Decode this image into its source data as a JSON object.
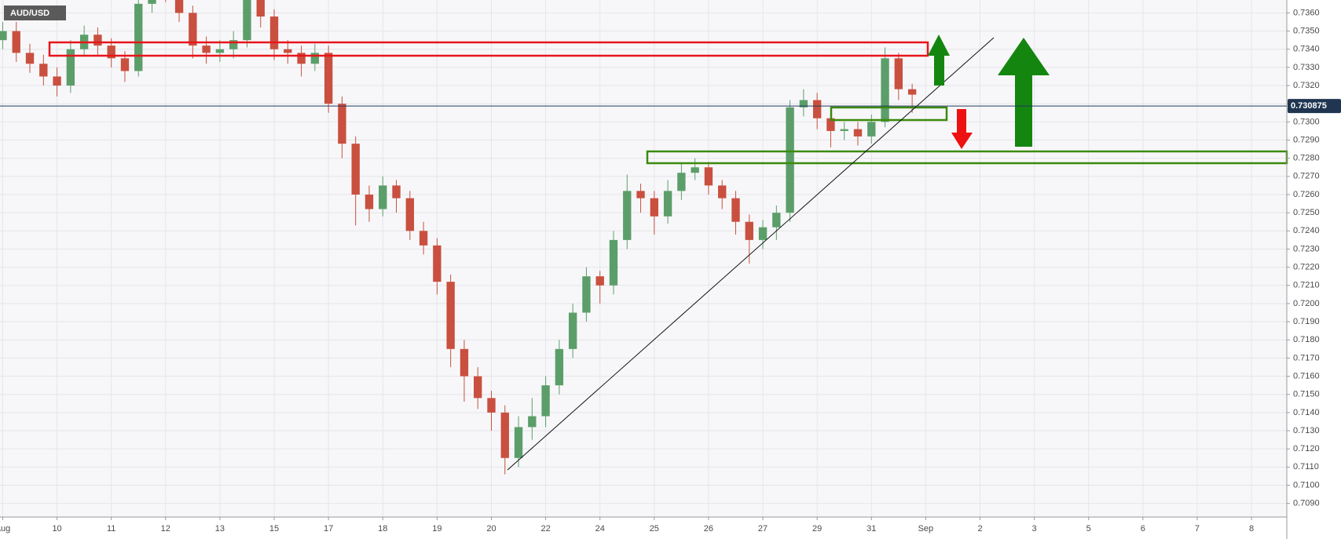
{
  "chart_data": {
    "type": "candlestick",
    "title": "AUD/USD",
    "x": [
      0,
      0.25,
      0.5,
      0.75,
      1,
      1.25,
      1.5,
      1.75,
      2,
      2.25,
      2.5,
      2.75,
      3,
      3.25,
      3.5,
      3.75,
      4,
      4.25,
      4.5,
      4.75,
      5,
      5.25,
      5.5,
      5.75,
      6,
      6.25,
      6.5,
      6.75,
      7,
      7.25,
      7.5,
      7.75,
      8,
      8.25,
      8.5,
      8.75,
      9,
      9.25,
      9.5,
      9.75,
      10,
      10.25,
      10.5,
      10.75,
      11,
      11.25,
      11.5,
      11.75,
      12,
      12.25,
      12.5,
      12.75,
      13,
      13.25,
      13.5,
      13.75,
      14,
      14.25,
      14.5,
      14.75,
      15,
      15.25,
      15.5,
      15.75,
      16,
      16.25,
      16.5,
      16.75
    ],
    "open": [
      0.7345,
      0.735,
      0.7338,
      0.7332,
      0.7325,
      0.732,
      0.734,
      0.7348,
      0.7342,
      0.7335,
      0.7328,
      0.7365,
      0.7375,
      0.7372,
      0.736,
      0.7342,
      0.7338,
      0.734,
      0.7345,
      0.7368,
      0.7358,
      0.734,
      0.7338,
      0.7332,
      0.7338,
      0.731,
      0.7288,
      0.726,
      0.7252,
      0.7265,
      0.7258,
      0.724,
      0.7232,
      0.7212,
      0.7175,
      0.716,
      0.7148,
      0.714,
      0.7115,
      0.7132,
      0.7138,
      0.7155,
      0.7175,
      0.7195,
      0.7215,
      0.721,
      0.7235,
      0.7262,
      0.7258,
      0.7248,
      0.7262,
      0.7272,
      0.7275,
      0.7265,
      0.7258,
      0.7245,
      0.7235,
      0.7242,
      0.725,
      0.7308,
      0.7312,
      0.7302,
      0.7295,
      0.7296,
      0.7292,
      0.73,
      0.7335,
      0.7318
    ],
    "high": [
      0.7355,
      0.7355,
      0.7343,
      0.7337,
      0.733,
      0.7345,
      0.7353,
      0.7352,
      0.7346,
      0.7339,
      0.737,
      0.7382,
      0.738,
      0.7377,
      0.7364,
      0.7347,
      0.7345,
      0.735,
      0.7374,
      0.7372,
      0.7362,
      0.7345,
      0.7342,
      0.7343,
      0.7342,
      0.7314,
      0.7292,
      0.7265,
      0.727,
      0.7268,
      0.7262,
      0.7245,
      0.7236,
      0.7216,
      0.718,
      0.7165,
      0.7152,
      0.7144,
      0.7138,
      0.7148,
      0.716,
      0.718,
      0.72,
      0.722,
      0.7218,
      0.724,
      0.7271,
      0.7266,
      0.7262,
      0.7268,
      0.7277,
      0.728,
      0.7278,
      0.7268,
      0.7262,
      0.7249,
      0.7246,
      0.7254,
      0.7312,
      0.7318,
      0.7316,
      0.7306,
      0.73,
      0.73,
      0.7304,
      0.7341,
      0.7338,
      0.7321
    ],
    "low": [
      0.734,
      0.7333,
      0.7327,
      0.732,
      0.7314,
      0.7316,
      0.7336,
      0.7337,
      0.733,
      0.7322,
      0.7325,
      0.736,
      0.7366,
      0.7355,
      0.7335,
      0.7332,
      0.7333,
      0.7335,
      0.7341,
      0.7352,
      0.7334,
      0.7332,
      0.7325,
      0.7328,
      0.7305,
      0.728,
      0.7243,
      0.7245,
      0.7248,
      0.725,
      0.7235,
      0.7227,
      0.7205,
      0.7165,
      0.7146,
      0.7142,
      0.713,
      0.7106,
      0.711,
      0.7125,
      0.7132,
      0.715,
      0.717,
      0.719,
      0.72,
      0.7205,
      0.723,
      0.725,
      0.7238,
      0.7244,
      0.7257,
      0.7268,
      0.726,
      0.7252,
      0.7238,
      0.7222,
      0.723,
      0.7235,
      0.7245,
      0.7303,
      0.7296,
      0.7286,
      0.729,
      0.7287,
      0.7288,
      0.7297,
      0.7312,
      0.7305
    ],
    "close": [
      0.735,
      0.7338,
      0.7332,
      0.7325,
      0.732,
      0.734,
      0.7348,
      0.7342,
      0.7335,
      0.7328,
      0.7365,
      0.7375,
      0.7372,
      0.736,
      0.7342,
      0.7338,
      0.734,
      0.7345,
      0.7368,
      0.7358,
      0.734,
      0.7338,
      0.7332,
      0.7338,
      0.731,
      0.7288,
      0.726,
      0.7252,
      0.7265,
      0.7258,
      0.724,
      0.7232,
      0.7212,
      0.7175,
      0.716,
      0.7148,
      0.714,
      0.7115,
      0.7132,
      0.7138,
      0.7155,
      0.7175,
      0.7195,
      0.7215,
      0.721,
      0.7235,
      0.7262,
      0.7258,
      0.7248,
      0.7262,
      0.7272,
      0.7275,
      0.7265,
      0.7258,
      0.7245,
      0.7235,
      0.7242,
      0.725,
      0.7308,
      0.7312,
      0.7302,
      0.7295,
      0.7296,
      0.7292,
      0.73,
      0.7335,
      0.7318,
      0.7315
    ],
    "up_color": "#5c9e6a",
    "down_color": "#c9503f",
    "last_price": 0.730875,
    "xlim": [
      -0.05,
      23.65
    ],
    "ylim": [
      0.70825,
      0.73671
    ],
    "grid": true,
    "xticks": [
      {
        "value": 0,
        "label": "Aug"
      },
      {
        "value": 1,
        "label": "10"
      },
      {
        "value": 2,
        "label": "11"
      },
      {
        "value": 3,
        "label": "12"
      },
      {
        "value": 4,
        "label": "13"
      },
      {
        "value": 5,
        "label": "15"
      },
      {
        "value": 6,
        "label": "17"
      },
      {
        "value": 7,
        "label": "18"
      },
      {
        "value": 8,
        "label": "19"
      },
      {
        "value": 9,
        "label": "20"
      },
      {
        "value": 10,
        "label": "22"
      },
      {
        "value": 11,
        "label": "24"
      },
      {
        "value": 12,
        "label": "25"
      },
      {
        "value": 13,
        "label": "26"
      },
      {
        "value": 14,
        "label": "27"
      },
      {
        "value": 15,
        "label": "29"
      },
      {
        "value": 16,
        "label": "31"
      },
      {
        "value": 17,
        "label": "Sep"
      },
      {
        "value": 18,
        "label": "2"
      },
      {
        "value": 19,
        "label": "3"
      },
      {
        "value": 20,
        "label": "5"
      },
      {
        "value": 21,
        "label": "6"
      },
      {
        "value": 22,
        "label": "7"
      },
      {
        "value": 23,
        "label": "8"
      }
    ],
    "yticks": [
      {
        "value": 0.709,
        "label": "0.7090"
      },
      {
        "value": 0.71,
        "label": "0.7100"
      },
      {
        "value": 0.711,
        "label": "0.7110"
      },
      {
        "value": 0.712,
        "label": "0.7120"
      },
      {
        "value": 0.713,
        "label": "0.7130"
      },
      {
        "value": 0.714,
        "label": "0.7140"
      },
      {
        "value": 0.715,
        "label": "0.7150"
      },
      {
        "value": 0.716,
        "label": "0.7160"
      },
      {
        "value": 0.717,
        "label": "0.7170"
      },
      {
        "value": 0.718,
        "label": "0.7180"
      },
      {
        "value": 0.719,
        "label": "0.7190"
      },
      {
        "value": 0.72,
        "label": "0.7200"
      },
      {
        "value": 0.721,
        "label": "0.7210"
      },
      {
        "value": 0.722,
        "label": "0.7220"
      },
      {
        "value": 0.723,
        "label": "0.7230"
      },
      {
        "value": 0.724,
        "label": "0.7240"
      },
      {
        "value": 0.725,
        "label": "0.7250"
      },
      {
        "value": 0.726,
        "label": "0.7260"
      },
      {
        "value": 0.727,
        "label": "0.7270"
      },
      {
        "value": 0.728,
        "label": "0.7280"
      },
      {
        "value": 0.729,
        "label": "0.7290"
      },
      {
        "value": 0.73,
        "label": "0.7300"
      },
      {
        "value": 0.731,
        "label": "0.7310"
      },
      {
        "value": 0.732,
        "label": "0.7320"
      },
      {
        "value": 0.733,
        "label": "0.7330"
      },
      {
        "value": 0.734,
        "label": "0.7340"
      },
      {
        "value": 0.735,
        "label": "0.7350"
      },
      {
        "value": 0.736,
        "label": "0.7360"
      }
    ]
  }
}
